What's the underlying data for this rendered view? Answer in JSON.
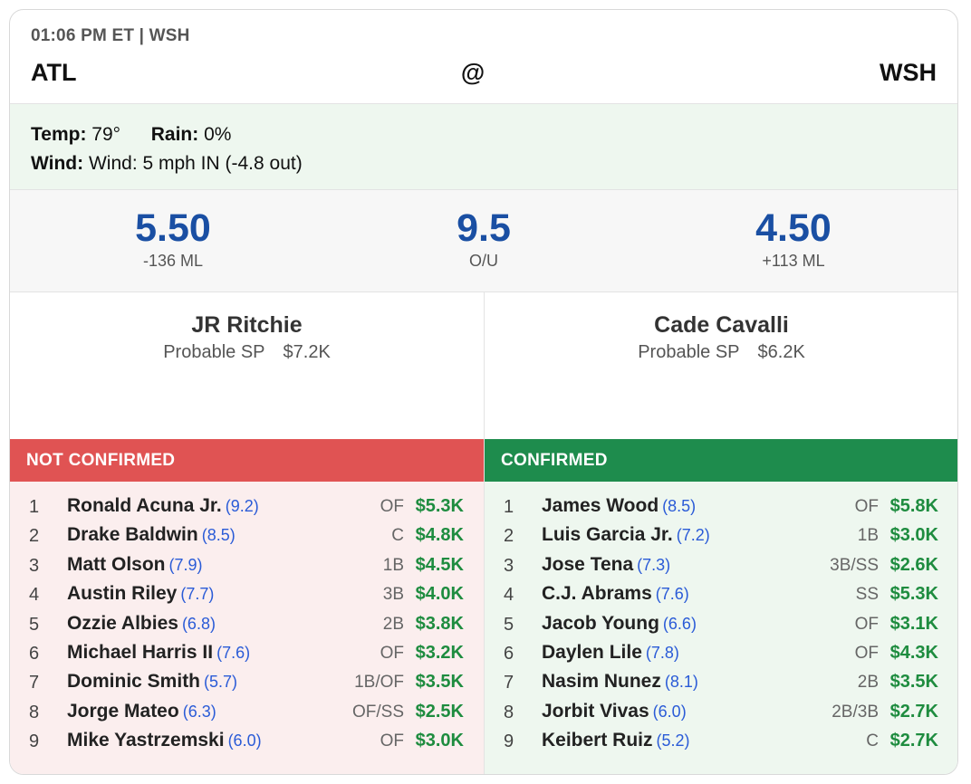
{
  "header": {
    "time": "01:06 PM ET | WSH",
    "away": "ATL",
    "at": "@",
    "home": "WSH"
  },
  "weather": {
    "temp_label": "Temp:",
    "temp_value": "79°",
    "rain_label": "Rain:",
    "rain_value": "0%",
    "wind_label": "Wind:",
    "wind_value": "Wind: 5 mph IN (-4.8 out)"
  },
  "odds": {
    "away_total": "5.50",
    "away_ml": "-136 ML",
    "ou": "9.5",
    "ou_label": "O/U",
    "home_total": "4.50",
    "home_ml": "+113 ML"
  },
  "pitchers": {
    "away": {
      "name": "JR Ritchie",
      "role": "Probable SP",
      "salary": "$7.2K"
    },
    "home": {
      "name": "Cade Cavalli",
      "role": "Probable SP",
      "salary": "$6.2K"
    }
  },
  "lineups": {
    "away": {
      "status": "NOT CONFIRMED",
      "players": [
        {
          "num": "1",
          "name": "Ronald Acuna Jr.",
          "rating": "(9.2)",
          "pos": "OF",
          "price": "$5.3K"
        },
        {
          "num": "2",
          "name": "Drake Baldwin",
          "rating": "(8.5)",
          "pos": "C",
          "price": "$4.8K"
        },
        {
          "num": "3",
          "name": "Matt Olson",
          "rating": "(7.9)",
          "pos": "1B",
          "price": "$4.5K"
        },
        {
          "num": "4",
          "name": "Austin Riley",
          "rating": "(7.7)",
          "pos": "3B",
          "price": "$4.0K"
        },
        {
          "num": "5",
          "name": "Ozzie Albies",
          "rating": "(6.8)",
          "pos": "2B",
          "price": "$3.8K"
        },
        {
          "num": "6",
          "name": "Michael Harris II",
          "rating": "(7.6)",
          "pos": "OF",
          "price": "$3.2K"
        },
        {
          "num": "7",
          "name": "Dominic Smith",
          "rating": "(5.7)",
          "pos": "1B/OF",
          "price": "$3.5K"
        },
        {
          "num": "8",
          "name": "Jorge Mateo",
          "rating": "(6.3)",
          "pos": "OF/SS",
          "price": "$2.5K"
        },
        {
          "num": "9",
          "name": "Mike Yastrzemski",
          "rating": "(6.0)",
          "pos": "OF",
          "price": "$3.0K"
        }
      ]
    },
    "home": {
      "status": "CONFIRMED",
      "players": [
        {
          "num": "1",
          "name": "James Wood",
          "rating": "(8.5)",
          "pos": "OF",
          "price": "$5.8K"
        },
        {
          "num": "2",
          "name": "Luis Garcia Jr.",
          "rating": "(7.2)",
          "pos": "1B",
          "price": "$3.0K"
        },
        {
          "num": "3",
          "name": "Jose Tena",
          "rating": "(7.3)",
          "pos": "3B/SS",
          "price": "$2.6K"
        },
        {
          "num": "4",
          "name": "C.J. Abrams",
          "rating": "(7.6)",
          "pos": "SS",
          "price": "$5.3K"
        },
        {
          "num": "5",
          "name": "Jacob Young",
          "rating": "(6.6)",
          "pos": "OF",
          "price": "$3.1K"
        },
        {
          "num": "6",
          "name": "Daylen Lile",
          "rating": "(7.8)",
          "pos": "OF",
          "price": "$4.3K"
        },
        {
          "num": "7",
          "name": "Nasim Nunez",
          "rating": "(8.1)",
          "pos": "2B",
          "price": "$3.5K"
        },
        {
          "num": "8",
          "name": "Jorbit Vivas",
          "rating": "(6.0)",
          "pos": "2B/3B",
          "price": "$2.7K"
        },
        {
          "num": "9",
          "name": "Keibert Ruiz",
          "rating": "(5.2)",
          "pos": "C",
          "price": "$2.7K"
        }
      ]
    }
  }
}
